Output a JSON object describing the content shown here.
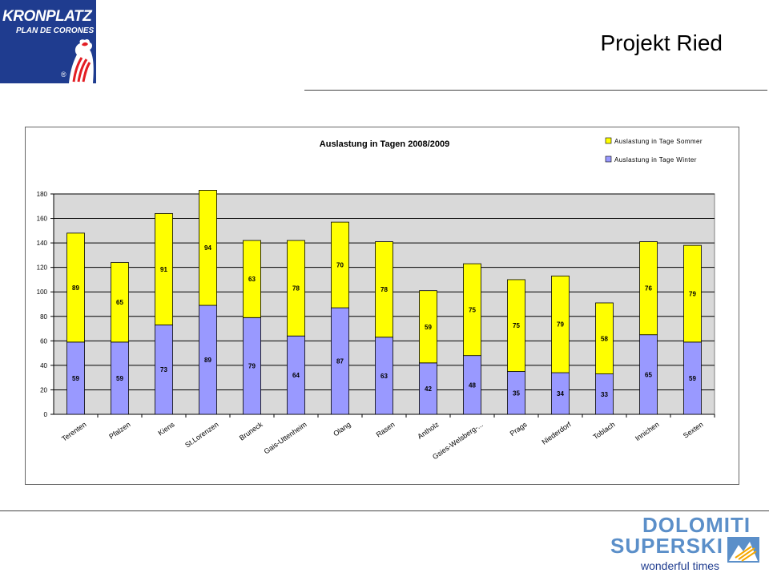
{
  "logo_top": {
    "line1": "KRONPLATZ",
    "line2": "PLAN DE CORONES",
    "reg": "®"
  },
  "page_title": "Projekt Ried",
  "logo_bottom": {
    "line1": "DOLOMITI",
    "line2": "SUPERSKI",
    "tagline": "wonderful times"
  },
  "colors": {
    "winter": "#9999ff",
    "sommer": "#ffff00",
    "plot_bg": "#d9d9d9",
    "brand_blue": "#1f3c8f",
    "brand_light": "#5b8fc9"
  },
  "chart_data": {
    "type": "bar",
    "stacked": true,
    "title": "Auslastung in Tagen 2008/2009",
    "xlabel": "",
    "ylabel": "",
    "ylim": [
      0,
      180
    ],
    "yticks": [
      "0",
      "20",
      "40",
      "60",
      "80",
      "100",
      "120",
      "140",
      "160",
      "180"
    ],
    "grid": true,
    "legend_position": "top-right",
    "categories": [
      "Terenten",
      "Pfalzen",
      "Kiens",
      "St.Lorenzen",
      "Bruneck",
      "Gais-Uttenheim",
      "Olang",
      "Rasen",
      "Antholz",
      "Gsies-Welsberg-...",
      "Prags",
      "Niederdorf",
      "Toblach",
      "Innichen",
      "Sexten"
    ],
    "series": [
      {
        "name": "Auslastung in Tage Winter",
        "values": [
          59,
          59,
          73,
          89,
          79,
          64,
          87,
          63,
          42,
          48,
          35,
          34,
          33,
          65,
          59
        ]
      },
      {
        "name": "Auslastung in Tage Sommer",
        "values": [
          89,
          65,
          91,
          94,
          63,
          78,
          70,
          78,
          59,
          75,
          75,
          79,
          58,
          76,
          79
        ]
      }
    ],
    "legend_order": [
      "Auslastung in Tage Sommer",
      "Auslastung in Tage Winter"
    ]
  }
}
